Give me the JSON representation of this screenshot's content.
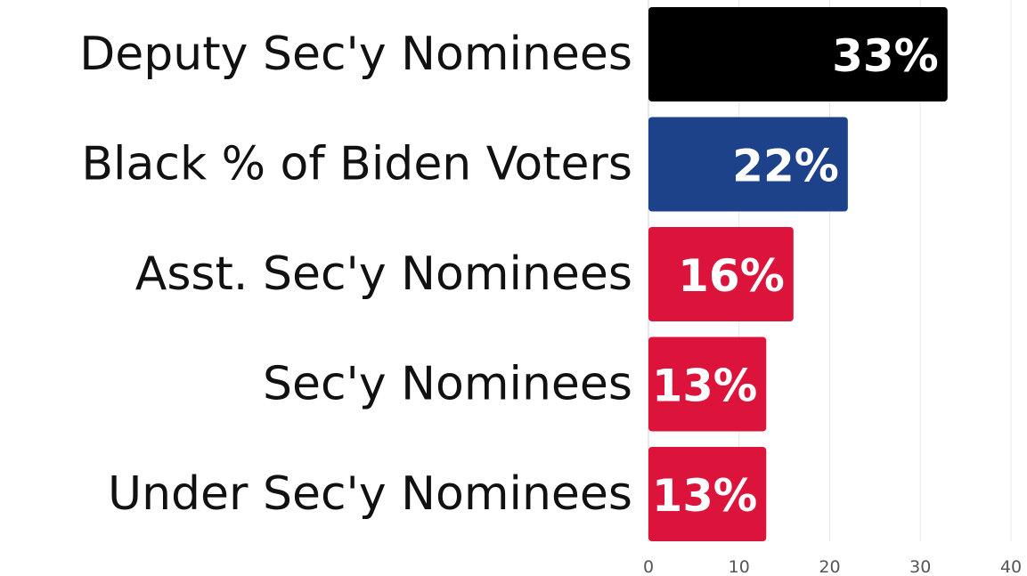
{
  "chart_data": {
    "type": "bar",
    "orientation": "horizontal",
    "title": "",
    "xlabel": "",
    "ylabel": "",
    "categories": [
      "Deputy Sec'y Nominees",
      "Black % of Biden Voters",
      "Asst. Sec'y Nominees",
      "Sec'y Nominees",
      "Under Sec'y Nominees"
    ],
    "values": [
      33,
      22,
      16,
      13,
      13
    ],
    "data_labels": [
      "33%",
      "22%",
      "16%",
      "13%",
      "13%"
    ],
    "bar_colors": [
      "#000000",
      "#1d428a",
      "#dc143c",
      "#dc143c",
      "#dc143c"
    ],
    "xlim": [
      0,
      40
    ],
    "x_ticks": [
      0,
      10,
      20,
      30,
      40
    ],
    "grid": true,
    "legend": "none"
  }
}
